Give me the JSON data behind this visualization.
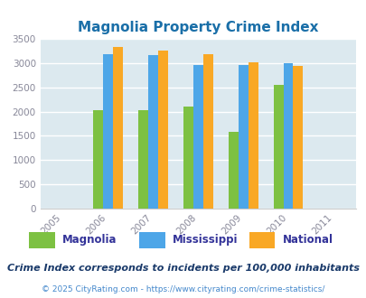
{
  "title": "Magnolia Property Crime Index",
  "years": [
    2005,
    2006,
    2007,
    2008,
    2009,
    2010,
    2011
  ],
  "bar_years": [
    2006,
    2007,
    2008,
    2009,
    2010
  ],
  "magnolia": [
    2030,
    2030,
    2100,
    1580,
    2540
  ],
  "mississippi": [
    3190,
    3170,
    2950,
    2950,
    2990
  ],
  "national": [
    3330,
    3250,
    3190,
    3020,
    2940
  ],
  "colors": {
    "magnolia": "#7dc142",
    "mississippi": "#4da6e8",
    "national": "#f9a825"
  },
  "ylim": [
    0,
    3500
  ],
  "yticks": [
    0,
    500,
    1000,
    1500,
    2000,
    2500,
    3000,
    3500
  ],
  "background_color": "#dce9ef",
  "title_color": "#1a6fa8",
  "title_fontsize": 11,
  "legend_labels": [
    "Magnolia",
    "Mississippi",
    "National"
  ],
  "legend_text_color": "#333399",
  "footnote1": "Crime Index corresponds to incidents per 100,000 inhabitants",
  "footnote1_color": "#1a3a6a",
  "footnote2": "© 2025 CityRating.com - https://www.cityrating.com/crime-statistics/",
  "footnote2_color": "#4488cc",
  "bar_width": 0.22,
  "xlabel_color": "#888899",
  "ylabel_color": "#888899"
}
